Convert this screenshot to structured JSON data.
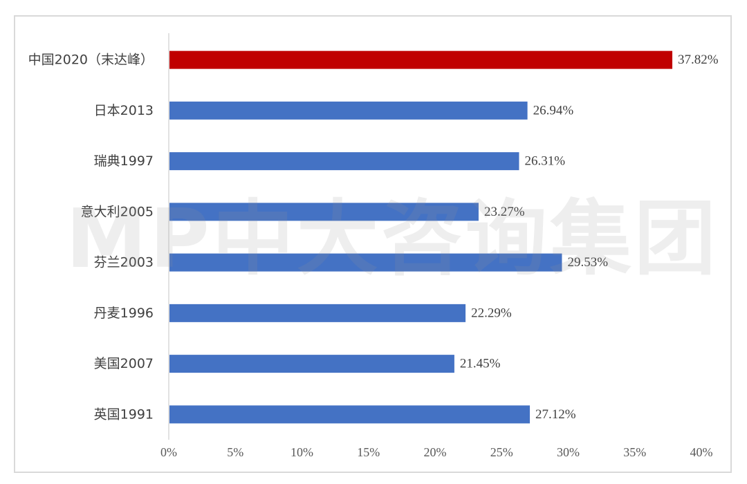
{
  "watermark": "MP中大咨询集团",
  "chart_data": {
    "type": "bar",
    "orientation": "horizontal",
    "title": "",
    "xlabel": "",
    "ylabel": "",
    "categories": [
      "中国2020（末达峰）",
      "日本2013",
      "瑞典1997",
      "意大利2005",
      "芬兰2003",
      "丹麦1996",
      "美国2007",
      "英国1991"
    ],
    "values": [
      37.82,
      26.94,
      26.31,
      23.27,
      29.53,
      22.29,
      21.45,
      27.12
    ],
    "value_labels": [
      "37.82%",
      "26.94%",
      "26.31%",
      "23.27%",
      "29.53%",
      "22.29%",
      "21.45%",
      "27.12%"
    ],
    "bar_colors": [
      "#c00000",
      "#4472c4",
      "#4472c4",
      "#4472c4",
      "#4472c4",
      "#4472c4",
      "#4472c4",
      "#4472c4"
    ],
    "xlim": [
      0,
      40
    ],
    "xticks": [
      0,
      5,
      10,
      15,
      20,
      25,
      30,
      35,
      40
    ],
    "xtick_labels": [
      "0%",
      "5%",
      "10%",
      "15%",
      "20%",
      "25%",
      "30%",
      "35%",
      "40%"
    ],
    "grid": false,
    "legend": "none"
  }
}
